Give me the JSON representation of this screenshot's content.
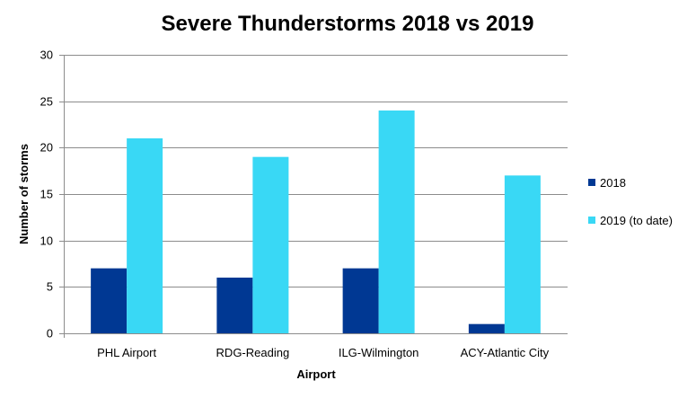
{
  "chart_data": {
    "type": "bar",
    "title": "Severe Thunderstorms 2018 vs 2019",
    "xlabel": "Airport",
    "ylabel": "Number of storms",
    "categories": [
      "PHL Airport",
      "RDG-Reading",
      "ILG-Wilmington",
      "ACY-Atlantic City"
    ],
    "series": [
      {
        "name": "2018",
        "values": [
          7,
          6,
          7,
          1
        ],
        "color": "#003893"
      },
      {
        "name": "2019 (to date)",
        "values": [
          21,
          19,
          24,
          17
        ],
        "color": "#39D8F5"
      }
    ],
    "ylim": [
      0,
      30
    ],
    "yticks": [
      "0",
      "5",
      "10",
      "15",
      "20",
      "25",
      "30"
    ],
    "grid": true,
    "legend_position": "right"
  }
}
